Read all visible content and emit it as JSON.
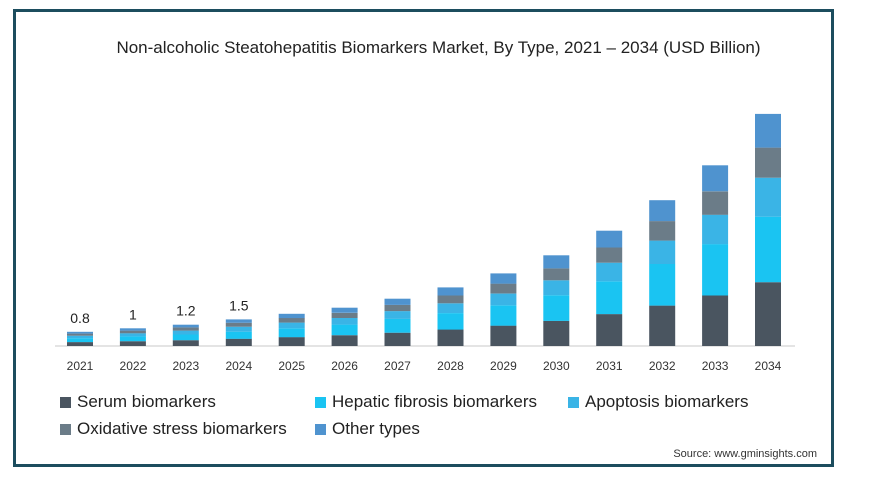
{
  "chart_data": {
    "type": "bar",
    "stacked": true,
    "title": "Non-alcoholic Steatohepatitis Biomarkers Market, By Type, 2021 – 2034 (USD Billion)",
    "categories": [
      "2021",
      "2022",
      "2023",
      "2024",
      "2025",
      "2026",
      "2027",
      "2028",
      "2029",
      "2030",
      "2031",
      "2032",
      "2033",
      "2034"
    ],
    "series": [
      {
        "name": "Serum biomarkers",
        "color": "#4a5560",
        "values": [
          0.22,
          0.27,
          0.33,
          0.41,
          0.5,
          0.61,
          0.75,
          0.93,
          1.15,
          1.42,
          1.8,
          2.28,
          2.85,
          3.6
        ]
      },
      {
        "name": "Hepatic fibrosis biomarkers",
        "color": "#1ac4f2",
        "values": [
          0.22,
          0.27,
          0.32,
          0.4,
          0.5,
          0.6,
          0.78,
          0.93,
          1.15,
          1.45,
          1.85,
          2.35,
          2.9,
          3.7
        ]
      },
      {
        "name": "Apoptosis biomarkers",
        "color": "#3ab4e6",
        "values": [
          0.14,
          0.18,
          0.22,
          0.28,
          0.32,
          0.37,
          0.44,
          0.55,
          0.66,
          0.84,
          1.05,
          1.32,
          1.66,
          2.2
        ]
      },
      {
        "name": "Oxidative stress biomarkers",
        "color": "#6b7c88",
        "values": [
          0.12,
          0.15,
          0.18,
          0.22,
          0.26,
          0.29,
          0.35,
          0.44,
          0.56,
          0.67,
          0.86,
          1.1,
          1.32,
          1.7
        ]
      },
      {
        "name": "Other types",
        "color": "#4f93cf",
        "values": [
          0.1,
          0.13,
          0.15,
          0.19,
          0.24,
          0.29,
          0.35,
          0.46,
          0.58,
          0.74,
          0.95,
          1.18,
          1.47,
          1.9
        ]
      }
    ],
    "data_labels": [
      "0.8",
      "1",
      "1.2",
      "1.5"
    ],
    "ylim": [
      0,
      14
    ],
    "grid": false,
    "legend_position": "bottom"
  },
  "source": "Source: www.gminsights.com"
}
